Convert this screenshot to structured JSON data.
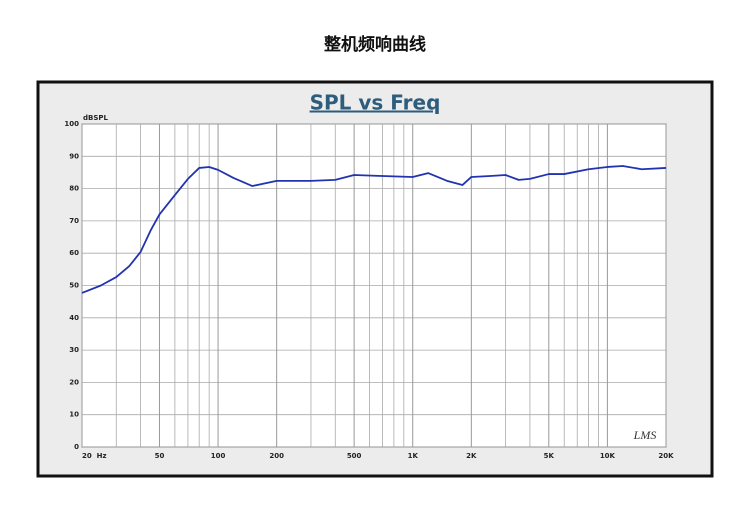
{
  "page_title": "整机频响曲线",
  "chart_data": {
    "type": "line",
    "title": "SPL vs Freq",
    "y_label": "dBSPL",
    "logo": "LMS",
    "log_x": true,
    "grid": true,
    "xlim": [
      20,
      20000
    ],
    "ylim": [
      0,
      100
    ],
    "xticks": [
      {
        "value": 20,
        "label": "20  Hz"
      },
      50,
      100,
      200,
      500,
      {
        "value": 1000,
        "label": "1K"
      },
      {
        "value": 2000,
        "label": "2K"
      },
      {
        "value": 5000,
        "label": "5K"
      },
      {
        "value": 10000,
        "label": "10K"
      },
      {
        "value": 20000,
        "label": "20K"
      }
    ],
    "xminorticks": [
      30,
      40,
      60,
      70,
      80,
      90,
      300,
      400,
      600,
      700,
      800,
      900,
      3000,
      4000,
      6000,
      7000,
      8000,
      9000
    ],
    "yticks": [
      0,
      10,
      20,
      30,
      40,
      50,
      60,
      70,
      80,
      90,
      100
    ],
    "x": [
      20,
      25,
      30,
      35,
      40,
      45,
      50,
      60,
      70,
      80,
      90,
      100,
      120,
      150,
      200,
      300,
      400,
      500,
      700,
      1000,
      1200,
      1500,
      1800,
      2000,
      2500,
      3000,
      3500,
      4000,
      5000,
      6000,
      8000,
      10000,
      12000,
      15000,
      20000
    ],
    "series": [
      {
        "name": "SPL",
        "color": "#2233b0",
        "values": [
          47.7,
          50,
          52.6,
          56,
          60.4,
          67,
          72,
          78,
          83,
          86.4,
          86.7,
          85.8,
          83.3,
          80.8,
          82.4,
          82.4,
          82.7,
          84.2,
          83.9,
          83.6,
          84.8,
          82.4,
          81.1,
          83.6,
          83.9,
          84.2,
          82.7,
          83,
          84.5,
          84.5,
          86,
          86.7,
          87,
          86,
          86.4
        ]
      }
    ]
  }
}
